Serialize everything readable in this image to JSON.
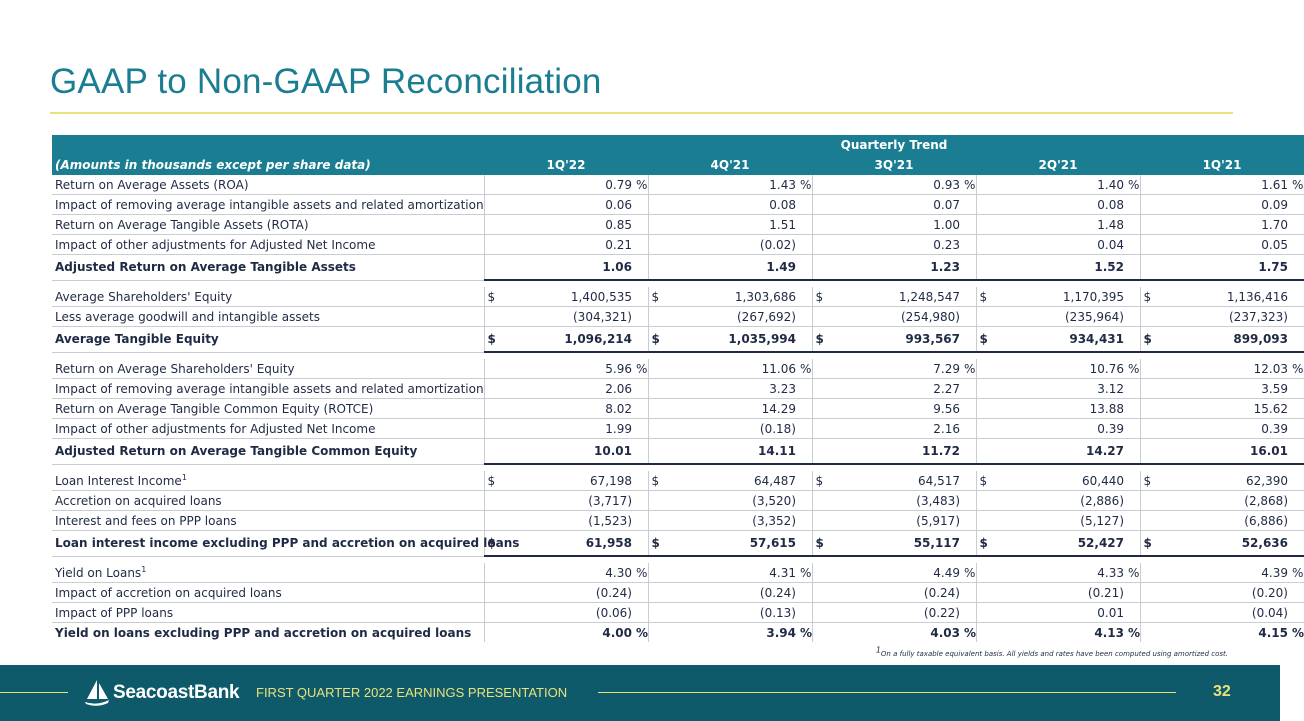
{
  "title": "GAAP to Non-GAAP Reconciliation",
  "table": {
    "group_header": "Quarterly Trend",
    "row_header": "(Amounts in thousands except per share data)",
    "columns": [
      "1Q'22",
      "4Q'21",
      "3Q'21",
      "2Q'21",
      "1Q'21"
    ],
    "rows": [
      {
        "label": "Return on Average Assets (ROA)",
        "values": [
          "0.79",
          "1.43",
          "0.93",
          "1.40",
          "1.61"
        ],
        "dollar": false,
        "percent": true
      },
      {
        "label": "Impact of removing average intangible assets and related amortization",
        "values": [
          "0.06",
          "0.08",
          "0.07",
          "0.08",
          "0.09"
        ],
        "dollar": false,
        "percent": false
      },
      {
        "label": "Return on Average Tangible Assets (ROTA)",
        "values": [
          "0.85",
          "1.51",
          "1.00",
          "1.48",
          "1.70"
        ],
        "dollar": false,
        "percent": false
      },
      {
        "label": "Impact of other adjustments for Adjusted Net Income",
        "values": [
          "0.21",
          "(0.02)",
          "0.23",
          "0.04",
          "0.05"
        ],
        "dollar": false,
        "percent": false
      },
      {
        "label": "Adjusted Return on Average Tangible Assets",
        "values": [
          "1.06",
          "1.49",
          "1.23",
          "1.52",
          "1.75"
        ],
        "dollar": false,
        "percent": false,
        "bold": true
      },
      {
        "label": "Average Shareholders' Equity",
        "values": [
          "1,400,535",
          "1,303,686",
          "1,248,547",
          "1,170,395",
          "1,136,416"
        ],
        "dollar": true,
        "percent": false
      },
      {
        "label": "Less average goodwill and intangible assets",
        "values": [
          "(304,321)",
          "(267,692)",
          "(254,980)",
          "(235,964)",
          "(237,323)"
        ],
        "dollar": false,
        "percent": false
      },
      {
        "label": "Average Tangible Equity",
        "values": [
          "1,096,214",
          "1,035,994",
          "993,567",
          "934,431",
          "899,093"
        ],
        "dollar": true,
        "percent": false,
        "bold": true
      },
      {
        "label": "Return on Average Shareholders' Equity",
        "values": [
          "5.96",
          "11.06",
          "7.29",
          "10.76",
          "12.03"
        ],
        "dollar": false,
        "percent": true
      },
      {
        "label": "Impact of removing average intangible assets and related amortization",
        "values": [
          "2.06",
          "3.23",
          "2.27",
          "3.12",
          "3.59"
        ],
        "dollar": false,
        "percent": false
      },
      {
        "label": "Return on Average Tangible Common Equity (ROTCE)",
        "values": [
          "8.02",
          "14.29",
          "9.56",
          "13.88",
          "15.62"
        ],
        "dollar": false,
        "percent": false
      },
      {
        "label": "Impact of other adjustments for Adjusted Net Income",
        "values": [
          "1.99",
          "(0.18)",
          "2.16",
          "0.39",
          "0.39"
        ],
        "dollar": false,
        "percent": false
      },
      {
        "label": "Adjusted Return on Average Tangible Common Equity",
        "values": [
          "10.01",
          "14.11",
          "11.72",
          "14.27",
          "16.01"
        ],
        "dollar": false,
        "percent": false,
        "bold": true
      },
      {
        "label": "Loan Interest Income",
        "sup": "1",
        "values": [
          "67,198",
          "64,487",
          "64,517",
          "60,440",
          "62,390"
        ],
        "dollar": true,
        "percent": false
      },
      {
        "label": "Accretion on acquired loans",
        "values": [
          "(3,717)",
          "(3,520)",
          "(3,483)",
          "(2,886)",
          "(2,868)"
        ],
        "dollar": false,
        "percent": false
      },
      {
        "label": "Interest and fees on PPP loans",
        "values": [
          "(1,523)",
          "(3,352)",
          "(5,917)",
          "(5,127)",
          "(6,886)"
        ],
        "dollar": false,
        "percent": false
      },
      {
        "label": "Loan interest income excluding PPP and accretion on acquired loans",
        "values": [
          "61,958",
          "57,615",
          "55,117",
          "52,427",
          "52,636"
        ],
        "dollar": true,
        "percent": false,
        "bold": true
      },
      {
        "label": "Yield on Loans",
        "sup": "1",
        "values": [
          "4.30",
          "4.31",
          "4.49",
          "4.33",
          "4.39"
        ],
        "dollar": false,
        "percent": true
      },
      {
        "label": "Impact of accretion on acquired loans",
        "values": [
          "(0.24)",
          "(0.24)",
          "(0.24)",
          "(0.21)",
          "(0.20)"
        ],
        "dollar": false,
        "percent": false
      },
      {
        "label": "Impact of PPP loans",
        "values": [
          "(0.06)",
          "(0.13)",
          "(0.22)",
          "0.01",
          "(0.04)"
        ],
        "dollar": false,
        "percent": false
      },
      {
        "label": "Yield on loans excluding PPP and accretion on acquired loans",
        "values": [
          "4.00",
          "3.94",
          "4.03",
          "4.13",
          "4.15"
        ],
        "dollar": false,
        "percent": true,
        "last": true
      }
    ]
  },
  "footnote": {
    "marker": "1",
    "text": "On a fully taxable equivalent basis. All yields and rates have been computed using amortized cost."
  },
  "footer": {
    "brand": "SeacoastBank",
    "presentation": "FIRST QUARTER 2022 EARNINGS PRESENTATION",
    "page_number": "32"
  },
  "colors": {
    "accent": "#1a7d91",
    "footer_bg": "#0f5a6a",
    "highlight": "#e9e27a"
  },
  "icons": {
    "logo": "sailboat-icon"
  }
}
